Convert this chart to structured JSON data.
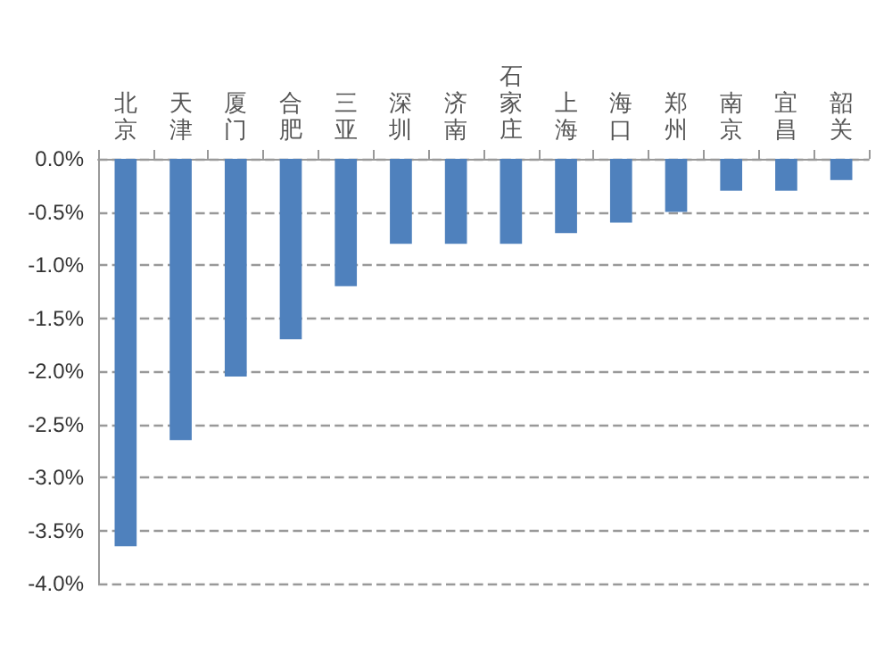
{
  "chart_data": {
    "type": "bar",
    "categories": [
      "北京",
      "天津",
      "厦门",
      "合肥",
      "三亚",
      "深圳",
      "济南",
      "石家庄",
      "上海",
      "海口",
      "郑州",
      "南京",
      "宜昌",
      "韶关"
    ],
    "values": [
      -3.65,
      -2.65,
      -2.05,
      -1.7,
      -1.2,
      -0.8,
      -0.8,
      -0.8,
      -0.7,
      -0.6,
      -0.5,
      -0.3,
      -0.3,
      -0.2
    ],
    "color": "#4f81bd",
    "ylim": [
      -4,
      0
    ],
    "yticks": [
      {
        "value": 0,
        "label": "0.0%"
      },
      {
        "value": -0.5,
        "label": "-0.5%"
      },
      {
        "value": -1,
        "label": "-1.0%"
      },
      {
        "value": -1.5,
        "label": "-1.5%"
      },
      {
        "value": -2,
        "label": "-2.0%"
      },
      {
        "value": -2.5,
        "label": "-2.5%"
      },
      {
        "value": -3,
        "label": "-3.0%"
      },
      {
        "value": -3.5,
        "label": "-3.5%"
      },
      {
        "value": -4,
        "label": "-4.0%"
      }
    ],
    "grid": "y"
  }
}
